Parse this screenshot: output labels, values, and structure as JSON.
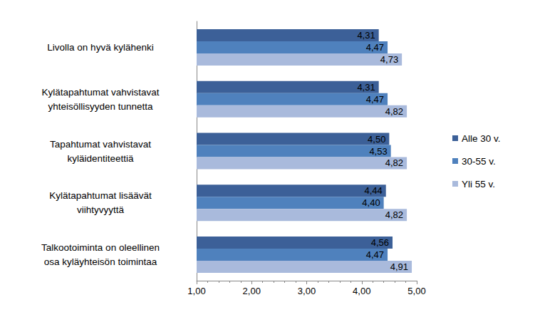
{
  "chart_data": {
    "type": "bar",
    "orientation": "horizontal",
    "categories": [
      "Livolla on hyvä kylähenki",
      "Kylätapahtumat vahvistavat\nyhteisöllisyyden tunnetta",
      "Tapahtumat vahvistavat\nkyläidentiteettiä",
      "Kylätapahtumat lisäävät\nviihtyvyyttä",
      "Talkootoiminta on oleellinen\nosa kyläyhteisön toimintaa"
    ],
    "series": [
      {
        "name": "Alle 30 v.",
        "color": "#3c6098",
        "values": [
          4.31,
          4.31,
          4.5,
          4.44,
          4.56
        ],
        "value_labels": [
          "4,31",
          "4,31",
          "4,50",
          "4,44",
          "4,56"
        ]
      },
      {
        "name": "30-55 v.",
        "color": "#4f81bd",
        "values": [
          4.47,
          4.47,
          4.53,
          4.4,
          4.47
        ],
        "value_labels": [
          "4,47",
          "4,47",
          "4,53",
          "4,40",
          "4,47"
        ]
      },
      {
        "name": "Yli 55 v.",
        "color": "#a9badc",
        "values": [
          4.73,
          4.82,
          4.82,
          4.82,
          4.91
        ],
        "value_labels": [
          "4,73",
          "4,82",
          "4,82",
          "4,82",
          "4,91"
        ]
      }
    ],
    "xlim": [
      1,
      5
    ],
    "xticks": [
      {
        "value": 1,
        "label": "1,00"
      },
      {
        "value": 2,
        "label": "2,00"
      },
      {
        "value": 3,
        "label": "3,00"
      },
      {
        "value": 4,
        "label": "4,00"
      },
      {
        "value": 5,
        "label": "5,00"
      }
    ],
    "grid": false,
    "legend": "right",
    "data_labels": true
  }
}
